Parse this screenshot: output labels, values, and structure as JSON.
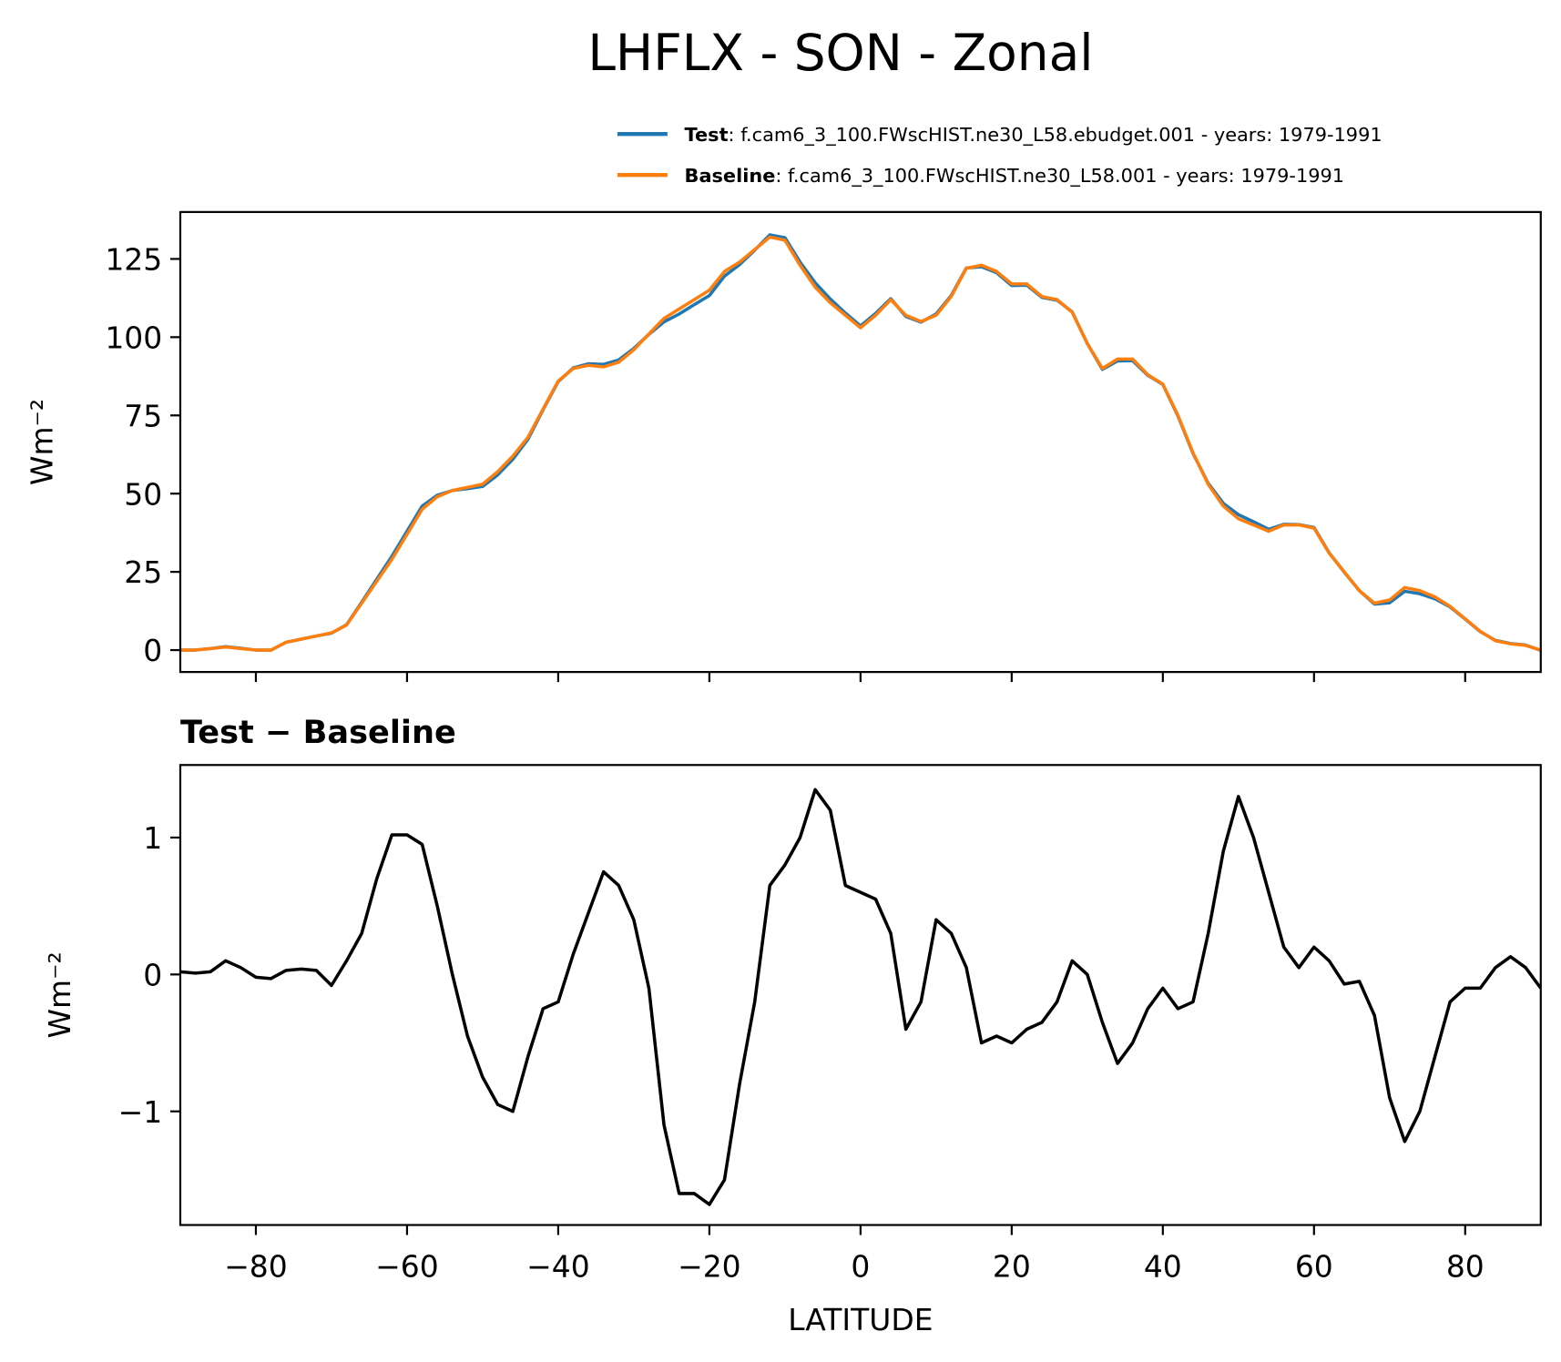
{
  "chart_data": [
    {
      "type": "line",
      "title": "LHFLX - SON - Zonal",
      "ylabel": "Wm⁻²",
      "x": [
        -90,
        -88,
        -86,
        -84,
        -82,
        -80,
        -78,
        -76,
        -74,
        -72,
        -70,
        -68,
        -66,
        -64,
        -62,
        -60,
        -58,
        -56,
        -54,
        -52,
        -50,
        -48,
        -46,
        -44,
        -42,
        -40,
        -38,
        -36,
        -34,
        -32,
        -30,
        -28,
        -26,
        -24,
        -22,
        -20,
        -18,
        -16,
        -14,
        -12,
        -10,
        -8,
        -6,
        -4,
        -2,
        0,
        2,
        4,
        6,
        8,
        10,
        12,
        14,
        16,
        18,
        20,
        22,
        24,
        26,
        28,
        30,
        32,
        34,
        36,
        38,
        40,
        42,
        44,
        46,
        48,
        50,
        52,
        54,
        56,
        58,
        60,
        62,
        64,
        66,
        68,
        70,
        72,
        74,
        76,
        78,
        80,
        82,
        84,
        86,
        88,
        90
      ],
      "series": [
        {
          "name": "Test",
          "description": ": f.cam6_3_100.FWscHIST.ne30_L58.ebudget.001 - years: 1979-1991",
          "color": "#1f77b4",
          "values": [
            0,
            0,
            0.5,
            1.1,
            0.6,
            0,
            0,
            2.5,
            3.5,
            4.5,
            5.4,
            8.1,
            15.3,
            22.7,
            30,
            38,
            46,
            49.5,
            51,
            51.6,
            52.3,
            56,
            61,
            67.4,
            76.8,
            85.8,
            90.2,
            91.5,
            91.3,
            92.7,
            96.4,
            100.9,
            104.9,
            107.4,
            110.4,
            113.3,
            119.5,
            123.2,
            127.8,
            132.7,
            131.8,
            124,
            117.4,
            112.2,
            107.7,
            103.6,
            107.6,
            112.3,
            106.6,
            104.8,
            107.4,
            113.3,
            122.1,
            122.5,
            120.6,
            116.5,
            116.6,
            112.7,
            111.8,
            108.1,
            98,
            89.7,
            92.4,
            92.5,
            87.8,
            84.9,
            74.8,
            62.8,
            53.3,
            46.9,
            43.3,
            41,
            38.6,
            40.2,
            40.1,
            39.2,
            31.1,
            24.9,
            19,
            14.7,
            15.1,
            18.8,
            18,
            16.4,
            13.8,
            9.9,
            5.9,
            3.1,
            2.1,
            1.6,
            -0.1
          ]
        },
        {
          "name": "Baseline",
          "description": ": f.cam6_3_100.FWscHIST.ne30_L58.001 - years: 1979-1991",
          "color": "#ff7f0e",
          "values": [
            0,
            0,
            0.5,
            1,
            0.5,
            0,
            0,
            2.5,
            3.5,
            4.5,
            5.5,
            8,
            15,
            22,
            29,
            37,
            45,
            49,
            51,
            52,
            53,
            57,
            62,
            68,
            77,
            86,
            90,
            91,
            90.5,
            92,
            96,
            101,
            106,
            109,
            112,
            115,
            121,
            124,
            128,
            132,
            131,
            123,
            116,
            111,
            107,
            103,
            107,
            112,
            107,
            105,
            107,
            113,
            122,
            123,
            121,
            117,
            117,
            113,
            112,
            108,
            98,
            90,
            93,
            93,
            88,
            85,
            75,
            63,
            53,
            46,
            42,
            40,
            38,
            40,
            40,
            39,
            31,
            25,
            19,
            15,
            16,
            20,
            19,
            17,
            14,
            10,
            6,
            3,
            2,
            1.5,
            0
          ]
        }
      ],
      "xlim": [
        -90,
        90
      ],
      "xticks": [
        -80,
        -60,
        -40,
        -20,
        0,
        20,
        40,
        60,
        80
      ],
      "show_xtick_labels": false,
      "ylim": [
        -7,
        140
      ],
      "yticks": [
        0,
        25,
        50,
        75,
        100,
        125
      ],
      "legend": "upper right"
    },
    {
      "type": "line",
      "subtitle": "Test − Baseline",
      "ylabel": "Wm⁻²",
      "xlabel": "LATITUDE",
      "x": [
        -90,
        -88,
        -86,
        -84,
        -82,
        -80,
        -78,
        -76,
        -74,
        -72,
        -70,
        -68,
        -66,
        -64,
        -62,
        -60,
        -58,
        -56,
        -54,
        -52,
        -50,
        -48,
        -46,
        -44,
        -42,
        -40,
        -38,
        -36,
        -34,
        -32,
        -30,
        -28,
        -26,
        -24,
        -22,
        -20,
        -18,
        -16,
        -14,
        -12,
        -10,
        -8,
        -6,
        -4,
        -2,
        0,
        2,
        4,
        6,
        8,
        10,
        12,
        14,
        16,
        18,
        20,
        22,
        24,
        26,
        28,
        30,
        32,
        34,
        36,
        38,
        40,
        42,
        44,
        46,
        48,
        50,
        52,
        54,
        56,
        58,
        60,
        62,
        64,
        66,
        68,
        70,
        72,
        74,
        76,
        78,
        80,
        82,
        84,
        86,
        88,
        90
      ],
      "series": [
        {
          "color": "#000000",
          "values": [
            0.02,
            0.01,
            0.02,
            0.1,
            0.05,
            -0.02,
            -0.03,
            0.03,
            0.04,
            0.03,
            -0.08,
            0.1,
            0.3,
            0.7,
            1.02,
            1.02,
            0.95,
            0.5,
            0,
            -0.45,
            -0.75,
            -0.95,
            -1,
            -0.6,
            -0.25,
            -0.2,
            0.15,
            0.45,
            0.75,
            0.65,
            0.4,
            -0.1,
            -1.1,
            -1.6,
            -1.6,
            -1.68,
            -1.5,
            -0.8,
            -0.2,
            0.65,
            0.8,
            1,
            1.35,
            1.2,
            0.65,
            0.6,
            0.55,
            0.3,
            -0.4,
            -0.2,
            0.4,
            0.3,
            0.05,
            -0.5,
            -0.45,
            -0.5,
            -0.4,
            -0.35,
            -0.2,
            0.1,
            0,
            -0.35,
            -0.65,
            -0.5,
            -0.25,
            -0.1,
            -0.25,
            -0.2,
            0.3,
            0.9,
            1.3,
            1,
            0.6,
            0.2,
            0.05,
            0.2,
            0.1,
            -0.07,
            -0.05,
            -0.3,
            -0.9,
            -1.22,
            -1,
            -0.6,
            -0.2,
            -0.1,
            -0.1,
            0.05,
            0.13,
            0.05,
            -0.1
          ]
        }
      ],
      "xlim": [
        -90,
        90
      ],
      "xticks": [
        {
          "value": -80,
          "label": "−80"
        },
        {
          "value": -60,
          "label": "−60"
        },
        {
          "value": -40,
          "label": "−40"
        },
        {
          "value": -20,
          "label": "−20"
        },
        0,
        20,
        40,
        60,
        80
      ],
      "show_xtick_labels": true,
      "ylim": [
        -1.83,
        1.53
      ],
      "yticks": [
        {
          "value": -1,
          "label": "−1"
        },
        0,
        1
      ]
    }
  ]
}
